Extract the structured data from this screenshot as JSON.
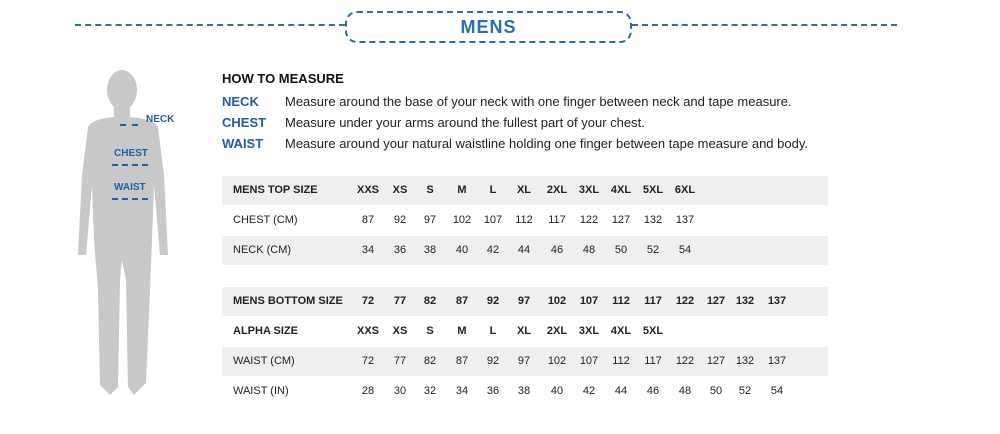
{
  "title": "MENS",
  "how_to": {
    "heading": "HOW TO MEASURE",
    "items": [
      {
        "key": "NECK",
        "text": "Measure around the base of your neck with one finger between neck and tape measure."
      },
      {
        "key": "CHEST",
        "text": "Measure under your arms around the fullest part of your chest."
      },
      {
        "key": "WAIST",
        "text": "Measure around your natural waistline holding one finger between tape measure and body."
      }
    ]
  },
  "figure_labels": {
    "neck": "NECK",
    "chest": "CHEST",
    "waist": "WAIST"
  },
  "colors": {
    "accent": "#2a6cb5",
    "row_shade": "#efefef",
    "figure": "#c8c8c8"
  },
  "top_table": {
    "rows": [
      {
        "label": "MENS TOP SIZE",
        "bold": true,
        "shade": true,
        "values": [
          "XXS",
          "XS",
          "S",
          "M",
          "L",
          "XL",
          "2XL",
          "3XL",
          "4XL",
          "5XL",
          "6XL"
        ]
      },
      {
        "label": "CHEST (CM)",
        "bold": false,
        "shade": false,
        "values": [
          "87",
          "92",
          "97",
          "102",
          "107",
          "112",
          "117",
          "122",
          "127",
          "132",
          "137"
        ]
      },
      {
        "label": "NECK (CM)",
        "bold": false,
        "shade": true,
        "values": [
          "34",
          "36",
          "38",
          "40",
          "42",
          "44",
          "46",
          "48",
          "50",
          "52",
          "54"
        ]
      }
    ]
  },
  "bottom_table": {
    "rows": [
      {
        "label": "MENS BOTTOM  SIZE",
        "bold": true,
        "shade": true,
        "values": [
          "72",
          "77",
          "82",
          "87",
          "92",
          "97",
          "102",
          "107",
          "112",
          "117",
          "122",
          "127",
          "132",
          "137"
        ]
      },
      {
        "label": "ALPHA SIZE",
        "bold": true,
        "shade": false,
        "values": [
          "XXS",
          "XS",
          "S",
          "M",
          "L",
          "XL",
          "2XL",
          "3XL",
          "4XL",
          "5XL"
        ]
      },
      {
        "label": "WAIST (CM)",
        "bold": false,
        "shade": true,
        "values": [
          "72",
          "77",
          "82",
          "87",
          "92",
          "97",
          "102",
          "107",
          "112",
          "117",
          "122",
          "127",
          "132",
          "137"
        ]
      },
      {
        "label": "WAIST (IN)",
        "bold": false,
        "shade": false,
        "values": [
          "28",
          "30",
          "32",
          "34",
          "36",
          "38",
          "40",
          "42",
          "44",
          "46",
          "48",
          "50",
          "52",
          "54"
        ]
      }
    ]
  }
}
